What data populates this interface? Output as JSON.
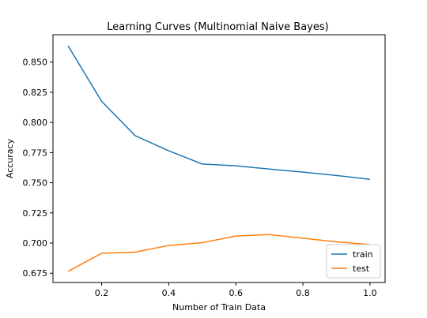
{
  "chart_data": {
    "type": "line",
    "title": "Learning Curves (Multinomial Naive Bayes)",
    "xlabel": "Number of Train Data",
    "ylabel": "Accuracy",
    "x": [
      0.1,
      0.2,
      0.3,
      0.4,
      0.5,
      0.6,
      0.7,
      0.8,
      0.9,
      1.0
    ],
    "series": [
      {
        "name": "train",
        "color": "#1f77b4",
        "values": [
          0.8635,
          0.8175,
          0.789,
          0.7765,
          0.7655,
          0.764,
          0.7613,
          0.7588,
          0.756,
          0.7528
        ]
      },
      {
        "name": "test",
        "color": "#ff7f0e",
        "values": [
          0.6765,
          0.6915,
          0.6925,
          0.698,
          0.7003,
          0.7058,
          0.707,
          0.704,
          0.701,
          0.6988
        ]
      }
    ],
    "xlim": [
      0.055,
      1.045
    ],
    "ylim": [
      0.6673,
      0.8727
    ],
    "xticks": [
      0.2,
      0.4,
      0.6,
      0.8,
      1.0
    ],
    "xtick_labels": [
      "0.2",
      "0.4",
      "0.6",
      "0.8",
      "1.0"
    ],
    "yticks": [
      0.675,
      0.7,
      0.725,
      0.75,
      0.775,
      0.8,
      0.825,
      0.85
    ],
    "ytick_labels": [
      "0.675",
      "0.700",
      "0.725",
      "0.750",
      "0.775",
      "0.800",
      "0.825",
      "0.850"
    ],
    "grid": false,
    "legend_position": "lower-right"
  }
}
